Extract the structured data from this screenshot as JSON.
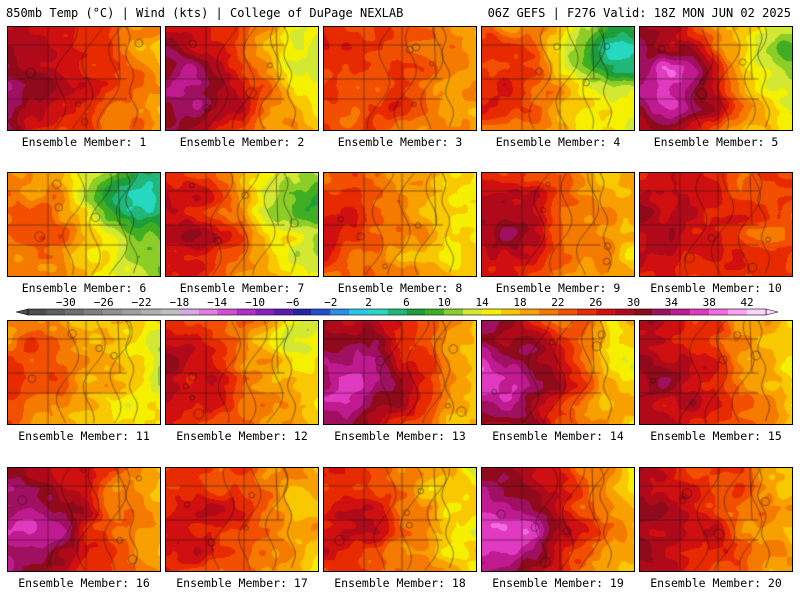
{
  "header": {
    "left_title": "850mb Temp (°C) | Wind (kts) | College of DuPage NEXLAB",
    "right_title": "06Z GEFS | F276 Valid: 18Z MON JUN 02 2025"
  },
  "colorbar": {
    "tick_labels": [
      "−30",
      "−26",
      "−22",
      "−18",
      "−14",
      "−10",
      "−6",
      "−2",
      "2",
      "6",
      "10",
      "14",
      "18",
      "22",
      "26",
      "30",
      "34",
      "38",
      "42"
    ],
    "tick_values": [
      -30,
      -26,
      -22,
      -18,
      -14,
      -10,
      -6,
      -2,
      2,
      6,
      10,
      14,
      18,
      22,
      26,
      30,
      34,
      38,
      42
    ],
    "bins": [
      {
        "from": -34,
        "to": -32,
        "color": "#4d4d4d"
      },
      {
        "from": -32,
        "to": -30,
        "color": "#5e5e5e"
      },
      {
        "from": -30,
        "to": -28,
        "color": "#6e6e6e"
      },
      {
        "from": -28,
        "to": -26,
        "color": "#7f7f7f"
      },
      {
        "from": -26,
        "to": -24,
        "color": "#8f8f8f"
      },
      {
        "from": -24,
        "to": -22,
        "color": "#9f9f9f"
      },
      {
        "from": -22,
        "to": -20,
        "color": "#afafaf"
      },
      {
        "from": -20,
        "to": -18,
        "color": "#c0c0c0"
      },
      {
        "from": -18,
        "to": -16,
        "color": "#d6a8e8"
      },
      {
        "from": -16,
        "to": -14,
        "color": "#e07ee0"
      },
      {
        "from": -14,
        "to": -12,
        "color": "#d24fd2"
      },
      {
        "from": -12,
        "to": -10,
        "color": "#b02fc9"
      },
      {
        "from": -10,
        "to": -8,
        "color": "#8a1fc0"
      },
      {
        "from": -8,
        "to": -6,
        "color": "#5a1ab4"
      },
      {
        "from": -6,
        "to": -4,
        "color": "#2424a8"
      },
      {
        "from": -4,
        "to": -2,
        "color": "#1f4fd0"
      },
      {
        "from": -2,
        "to": 0,
        "color": "#2a8fe6"
      },
      {
        "from": 0,
        "to": 2,
        "color": "#28c8e8"
      },
      {
        "from": 2,
        "to": 4,
        "color": "#26d8c0"
      },
      {
        "from": 4,
        "to": 6,
        "color": "#20b878"
      },
      {
        "from": 6,
        "to": 8,
        "color": "#1d9e3a"
      },
      {
        "from": 8,
        "to": 10,
        "color": "#3fae23"
      },
      {
        "from": 10,
        "to": 12,
        "color": "#8ccd28"
      },
      {
        "from": 12,
        "to": 14,
        "color": "#d2e832"
      },
      {
        "from": 14,
        "to": 16,
        "color": "#f5f000"
      },
      {
        "from": 16,
        "to": 18,
        "color": "#f8c800"
      },
      {
        "from": 18,
        "to": 20,
        "color": "#f8a000"
      },
      {
        "from": 20,
        "to": 22,
        "color": "#f57a00"
      },
      {
        "from": 22,
        "to": 24,
        "color": "#f25000"
      },
      {
        "from": 24,
        "to": 26,
        "color": "#e82a00"
      },
      {
        "from": 26,
        "to": 28,
        "color": "#d00f10"
      },
      {
        "from": 28,
        "to": 30,
        "color": "#b00a1a"
      },
      {
        "from": 30,
        "to": 32,
        "color": "#8f0a1a"
      },
      {
        "from": 32,
        "to": 34,
        "color": "#a01060"
      },
      {
        "from": 34,
        "to": 36,
        "color": "#c01a90"
      },
      {
        "from": 36,
        "to": 38,
        "color": "#e03ac0"
      },
      {
        "from": 38,
        "to": 40,
        "color": "#f46ae0"
      },
      {
        "from": 40,
        "to": 42,
        "color": "#fca0f0"
      },
      {
        "from": 42,
        "to": 44,
        "color": "#fdd4f8"
      }
    ]
  },
  "members": [
    {
      "label": "Ensemble Member: 1",
      "mean_temp": 24,
      "west_bias": 5,
      "green_northeast": 0,
      "core_max": 30
    },
    {
      "label": "Ensemble Member: 2",
      "mean_temp": 22,
      "west_bias": 6,
      "green_northeast": 0.4,
      "core_max": 34
    },
    {
      "label": "Ensemble Member: 3",
      "mean_temp": 22,
      "west_bias": 2,
      "green_northeast": 0,
      "core_max": 26
    },
    {
      "label": "Ensemble Member: 4",
      "mean_temp": 18,
      "west_bias": 4,
      "green_northeast": 1.0,
      "core_max": 26
    },
    {
      "label": "Ensemble Member: 5",
      "mean_temp": 22,
      "west_bias": 7,
      "green_northeast": 0.5,
      "core_max": 36
    },
    {
      "label": "Ensemble Member: 6",
      "mean_temp": 16,
      "west_bias": 4,
      "green_northeast": 1.0,
      "core_max": 24
    },
    {
      "label": "Ensemble Member: 7",
      "mean_temp": 20,
      "west_bias": 6,
      "green_northeast": 0.7,
      "core_max": 28
    },
    {
      "label": "Ensemble Member: 8",
      "mean_temp": 19,
      "west_bias": 4,
      "green_northeast": 0,
      "core_max": 26
    },
    {
      "label": "Ensemble Member: 9",
      "mean_temp": 22,
      "west_bias": 5,
      "green_northeast": 0,
      "core_max": 30
    },
    {
      "label": "Ensemble Member: 10",
      "mean_temp": 25,
      "west_bias": 3,
      "green_northeast": 0,
      "core_max": 30
    },
    {
      "label": "Ensemble Member: 11",
      "mean_temp": 18,
      "west_bias": 4,
      "green_northeast": 0,
      "core_max": 24
    },
    {
      "label": "Ensemble Member: 12",
      "mean_temp": 21,
      "west_bias": 5,
      "green_northeast": 0.3,
      "core_max": 28
    },
    {
      "label": "Ensemble Member: 13",
      "mean_temp": 24,
      "west_bias": 6,
      "green_northeast": 0,
      "core_max": 36
    },
    {
      "label": "Ensemble Member: 14",
      "mean_temp": 24,
      "west_bias": 6,
      "green_northeast": 0.3,
      "core_max": 36
    },
    {
      "label": "Ensemble Member: 15",
      "mean_temp": 23,
      "west_bias": 5,
      "green_northeast": 0.2,
      "core_max": 30
    },
    {
      "label": "Ensemble Member: 16",
      "mean_temp": 25,
      "west_bias": 7,
      "green_northeast": 0,
      "core_max": 34
    },
    {
      "label": "Ensemble Member: 17",
      "mean_temp": 22,
      "west_bias": 4,
      "green_northeast": 0,
      "core_max": 28
    },
    {
      "label": "Ensemble Member: 18",
      "mean_temp": 20,
      "west_bias": 5,
      "green_northeast": 0,
      "core_max": 28
    },
    {
      "label": "Ensemble Member: 19",
      "mean_temp": 24,
      "west_bias": 7,
      "green_northeast": 0,
      "core_max": 36
    },
    {
      "label": "Ensemble Member: 20",
      "mean_temp": 23,
      "west_bias": 5,
      "green_northeast": 0,
      "core_max": 30
    }
  ]
}
